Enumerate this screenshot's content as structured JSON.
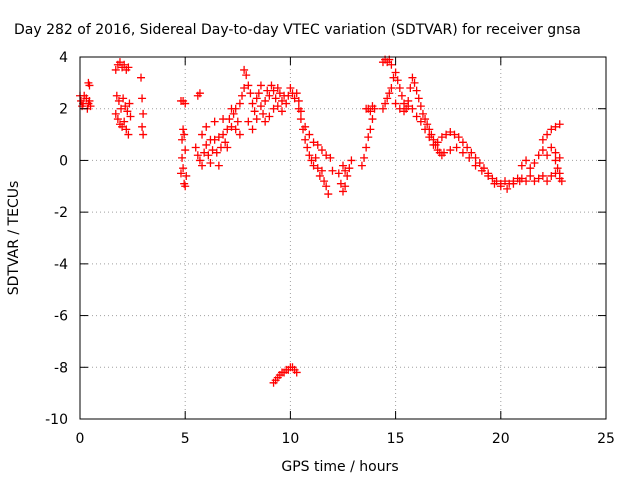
{
  "chart_data": {
    "type": "scatter",
    "title": "Day 282 of 2016, Sidereal Day-to-day VTEC variation (SDTVAR) for receiver gnsa",
    "xlabel": "GPS time / hours",
    "ylabel": "SDTVAR / TECUs",
    "xlim": [
      0,
      25
    ],
    "ylim": [
      -10,
      4
    ],
    "xticks": [
      0,
      5,
      10,
      15,
      20,
      25
    ],
    "yticks": [
      -10,
      -8,
      -6,
      -4,
      -2,
      0,
      2,
      4
    ],
    "xtick_labels": [
      "0",
      "5",
      "10",
      "15",
      "20",
      "25"
    ],
    "ytick_labels": [
      "-10",
      "-8",
      "-6",
      "-4",
      "-2",
      "0",
      "2",
      "4"
    ],
    "grid": true,
    "marker": "+",
    "series": [
      {
        "name": "SDTVAR",
        "color": "#ff0000",
        "points": [
          [
            0.0,
            2.5
          ],
          [
            0.05,
            2.3
          ],
          [
            0.1,
            2.1
          ],
          [
            0.15,
            2.2
          ],
          [
            0.2,
            2.5
          ],
          [
            0.3,
            2.4
          ],
          [
            0.35,
            2.0
          ],
          [
            0.4,
            2.2
          ],
          [
            0.45,
            2.3
          ],
          [
            0.5,
            2.1
          ],
          [
            0.4,
            3.0
          ],
          [
            0.45,
            2.9
          ],
          [
            1.7,
            3.5
          ],
          [
            1.8,
            3.7
          ],
          [
            1.9,
            3.8
          ],
          [
            2.0,
            3.6
          ],
          [
            2.1,
            3.7
          ],
          [
            2.2,
            3.5
          ],
          [
            2.3,
            3.6
          ],
          [
            1.75,
            2.5
          ],
          [
            1.85,
            2.3
          ],
          [
            1.95,
            2.0
          ],
          [
            2.05,
            2.4
          ],
          [
            2.15,
            2.1
          ],
          [
            2.25,
            1.9
          ],
          [
            1.7,
            1.8
          ],
          [
            1.8,
            1.6
          ],
          [
            1.9,
            1.4
          ],
          [
            2.0,
            1.3
          ],
          [
            2.1,
            1.5
          ],
          [
            2.2,
            1.2
          ],
          [
            2.3,
            1.0
          ],
          [
            2.35,
            2.2
          ],
          [
            2.4,
            1.7
          ],
          [
            2.9,
            3.2
          ],
          [
            2.95,
            2.4
          ],
          [
            3.0,
            1.8
          ],
          [
            2.95,
            1.3
          ],
          [
            3.0,
            1.0
          ],
          [
            4.8,
            -0.5
          ],
          [
            4.85,
            0.1
          ],
          [
            4.9,
            -0.3
          ],
          [
            4.95,
            -0.9
          ],
          [
            5.0,
            -1.0
          ],
          [
            5.05,
            -0.6
          ],
          [
            4.85,
            0.8
          ],
          [
            4.9,
            1.2
          ],
          [
            4.95,
            1.0
          ],
          [
            5.0,
            0.4
          ],
          [
            4.8,
            2.3
          ],
          [
            4.9,
            2.3
          ],
          [
            5.0,
            2.2
          ],
          [
            5.6,
            2.5
          ],
          [
            5.7,
            2.6
          ],
          [
            5.5,
            0.5
          ],
          [
            5.6,
            0.2
          ],
          [
            5.7,
            0.0
          ],
          [
            5.8,
            -0.2
          ],
          [
            5.9,
            0.3
          ],
          [
            6.0,
            0.6
          ],
          [
            6.1,
            0.2
          ],
          [
            6.2,
            -0.1
          ],
          [
            6.3,
            0.4
          ],
          [
            6.4,
            0.8
          ],
          [
            6.5,
            0.3
          ],
          [
            6.6,
            -0.2
          ],
          [
            6.7,
            0.5
          ],
          [
            6.8,
            1.0
          ],
          [
            6.9,
            0.7
          ],
          [
            7.0,
            1.2
          ],
          [
            7.1,
            1.6
          ],
          [
            7.2,
            1.3
          ],
          [
            7.3,
            1.8
          ],
          [
            7.4,
            2.0
          ],
          [
            7.5,
            1.5
          ],
          [
            7.6,
            2.2
          ],
          [
            7.7,
            2.5
          ],
          [
            7.8,
            3.5
          ],
          [
            7.9,
            3.3
          ],
          [
            8.0,
            2.9
          ],
          [
            8.1,
            2.6
          ],
          [
            8.2,
            2.2
          ],
          [
            8.3,
            1.9
          ],
          [
            8.4,
            2.4
          ],
          [
            8.5,
            2.6
          ],
          [
            8.6,
            2.1
          ],
          [
            8.7,
            1.8
          ],
          [
            8.8,
            2.3
          ],
          [
            8.9,
            2.7
          ],
          [
            9.0,
            2.5
          ],
          [
            9.1,
            2.9
          ],
          [
            9.2,
            2.7
          ],
          [
            9.3,
            2.4
          ],
          [
            9.4,
            2.8
          ],
          [
            9.5,
            2.6
          ],
          [
            9.6,
            2.3
          ],
          [
            9.7,
            2.5
          ],
          [
            9.8,
            2.2
          ],
          [
            9.9,
            2.5
          ],
          [
            10.0,
            2.8
          ],
          [
            10.1,
            2.6
          ],
          [
            10.2,
            2.4
          ],
          [
            10.3,
            2.6
          ],
          [
            10.4,
            2.3
          ],
          [
            5.8,
            1.0
          ],
          [
            6.0,
            1.3
          ],
          [
            6.2,
            0.8
          ],
          [
            6.4,
            1.5
          ],
          [
            6.6,
            0.9
          ],
          [
            6.8,
            1.6
          ],
          [
            7.0,
            0.5
          ],
          [
            7.2,
            2.0
          ],
          [
            7.4,
            1.2
          ],
          [
            7.6,
            1.0
          ],
          [
            7.8,
            2.8
          ],
          [
            8.0,
            1.5
          ],
          [
            8.2,
            1.2
          ],
          [
            8.4,
            1.6
          ],
          [
            8.6,
            2.9
          ],
          [
            8.8,
            1.5
          ],
          [
            9.0,
            1.7
          ],
          [
            9.2,
            2.0
          ],
          [
            9.4,
            2.1
          ],
          [
            9.6,
            1.9
          ],
          [
            10.4,
            2.0
          ],
          [
            10.5,
            1.6
          ],
          [
            10.6,
            1.2
          ],
          [
            10.7,
            0.8
          ],
          [
            10.8,
            0.5
          ],
          [
            10.9,
            0.2
          ],
          [
            11.0,
            0.0
          ],
          [
            11.1,
            -0.2
          ],
          [
            11.2,
            0.1
          ],
          [
            11.3,
            -0.3
          ],
          [
            11.4,
            -0.6
          ],
          [
            11.5,
            -0.4
          ],
          [
            11.6,
            -0.8
          ],
          [
            11.7,
            -1.0
          ],
          [
            11.8,
            -1.3
          ],
          [
            10.5,
            1.9
          ],
          [
            10.7,
            1.3
          ],
          [
            10.9,
            1.0
          ],
          [
            11.1,
            0.7
          ],
          [
            11.3,
            0.6
          ],
          [
            11.5,
            0.4
          ],
          [
            11.7,
            0.2
          ],
          [
            11.9,
            0.1
          ],
          [
            12.0,
            -0.4
          ],
          [
            12.3,
            -0.5
          ],
          [
            12.4,
            -0.9
          ],
          [
            12.5,
            -1.2
          ],
          [
            12.6,
            -1.0
          ],
          [
            12.7,
            -0.6
          ],
          [
            12.8,
            -0.3
          ],
          [
            12.9,
            0.0
          ],
          [
            12.5,
            -0.2
          ],
          [
            12.6,
            -0.4
          ],
          [
            13.4,
            -0.2
          ],
          [
            13.5,
            0.1
          ],
          [
            13.6,
            0.5
          ],
          [
            13.7,
            0.9
          ],
          [
            13.8,
            1.2
          ],
          [
            13.9,
            1.6
          ],
          [
            13.6,
            2.0
          ],
          [
            13.7,
            2.0
          ],
          [
            13.8,
            1.9
          ],
          [
            13.9,
            2.1
          ],
          [
            14.0,
            2.0
          ],
          [
            14.4,
            3.8
          ],
          [
            14.5,
            3.9
          ],
          [
            14.6,
            3.8
          ],
          [
            14.7,
            3.9
          ],
          [
            14.8,
            3.7
          ],
          [
            14.4,
            2.0
          ],
          [
            14.5,
            2.2
          ],
          [
            14.6,
            2.4
          ],
          [
            14.7,
            2.6
          ],
          [
            14.8,
            2.8
          ],
          [
            14.9,
            3.2
          ],
          [
            15.0,
            3.4
          ],
          [
            15.1,
            3.1
          ],
          [
            15.2,
            2.8
          ],
          [
            15.3,
            2.5
          ],
          [
            15.4,
            2.2
          ],
          [
            15.5,
            2.0
          ],
          [
            15.6,
            2.3
          ],
          [
            15.7,
            2.8
          ],
          [
            15.8,
            3.2
          ],
          [
            15.9,
            3.0
          ],
          [
            16.0,
            2.7
          ],
          [
            16.1,
            2.4
          ],
          [
            16.2,
            2.1
          ],
          [
            16.3,
            1.8
          ],
          [
            16.4,
            1.6
          ],
          [
            16.5,
            1.4
          ],
          [
            16.6,
            1.2
          ],
          [
            16.7,
            1.0
          ],
          [
            16.8,
            0.8
          ],
          [
            16.9,
            0.6
          ],
          [
            17.0,
            0.4
          ],
          [
            17.1,
            0.3
          ],
          [
            17.2,
            0.2
          ],
          [
            15.0,
            2.2
          ],
          [
            15.2,
            2.0
          ],
          [
            15.4,
            1.9
          ],
          [
            15.6,
            2.1
          ],
          [
            15.8,
            2.0
          ],
          [
            16.0,
            1.7
          ],
          [
            16.2,
            1.5
          ],
          [
            16.4,
            1.2
          ],
          [
            16.6,
            0.9
          ],
          [
            16.8,
            0.6
          ],
          [
            17.0,
            0.7
          ],
          [
            17.2,
            0.9
          ],
          [
            17.4,
            1.0
          ],
          [
            17.6,
            1.1
          ],
          [
            17.8,
            1.0
          ],
          [
            18.0,
            0.9
          ],
          [
            18.2,
            0.7
          ],
          [
            18.4,
            0.5
          ],
          [
            18.6,
            0.3
          ],
          [
            18.8,
            0.1
          ],
          [
            19.0,
            -0.1
          ],
          [
            19.2,
            -0.3
          ],
          [
            19.4,
            -0.5
          ],
          [
            19.6,
            -0.7
          ],
          [
            19.8,
            -0.8
          ],
          [
            20.0,
            -0.9
          ],
          [
            20.2,
            -0.8
          ],
          [
            20.4,
            -0.9
          ],
          [
            20.6,
            -0.8
          ],
          [
            20.8,
            -0.7
          ],
          [
            17.3,
            0.3
          ],
          [
            17.6,
            0.4
          ],
          [
            17.9,
            0.5
          ],
          [
            18.2,
            0.3
          ],
          [
            18.5,
            0.1
          ],
          [
            18.8,
            -0.2
          ],
          [
            19.1,
            -0.4
          ],
          [
            19.4,
            -0.6
          ],
          [
            19.7,
            -0.9
          ],
          [
            20.0,
            -1.0
          ],
          [
            20.3,
            -1.1
          ],
          [
            20.6,
            -0.9
          ],
          [
            20.9,
            -0.8
          ],
          [
            21.0,
            -0.7
          ],
          [
            21.2,
            -0.8
          ],
          [
            21.4,
            -0.6
          ],
          [
            21.6,
            -0.8
          ],
          [
            21.8,
            -0.7
          ],
          [
            22.0,
            -0.6
          ],
          [
            22.2,
            -0.8
          ],
          [
            22.4,
            -0.6
          ],
          [
            22.6,
            -0.5
          ],
          [
            22.8,
            -0.7
          ],
          [
            21.0,
            -0.2
          ],
          [
            21.2,
            0.0
          ],
          [
            21.4,
            -0.3
          ],
          [
            21.6,
            -0.1
          ],
          [
            21.8,
            0.2
          ],
          [
            22.0,
            0.4
          ],
          [
            22.2,
            0.2
          ],
          [
            22.4,
            0.5
          ],
          [
            22.6,
            0.3
          ],
          [
            22.8,
            0.1
          ],
          [
            22.0,
            0.8
          ],
          [
            22.2,
            1.0
          ],
          [
            22.4,
            1.2
          ],
          [
            22.6,
            1.3
          ],
          [
            22.8,
            1.4
          ],
          [
            22.6,
            0.0
          ],
          [
            22.7,
            -0.3
          ],
          [
            22.8,
            -0.5
          ],
          [
            22.9,
            -0.8
          ],
          [
            9.2,
            -8.6
          ],
          [
            9.3,
            -8.5
          ],
          [
            9.4,
            -8.4
          ],
          [
            9.5,
            -8.3
          ],
          [
            9.6,
            -8.2
          ],
          [
            9.7,
            -8.2
          ],
          [
            9.8,
            -8.1
          ],
          [
            9.9,
            -8.1
          ],
          [
            10.0,
            -8.0
          ],
          [
            10.1,
            -8.0
          ],
          [
            10.2,
            -8.1
          ],
          [
            10.3,
            -8.2
          ]
        ]
      }
    ]
  }
}
